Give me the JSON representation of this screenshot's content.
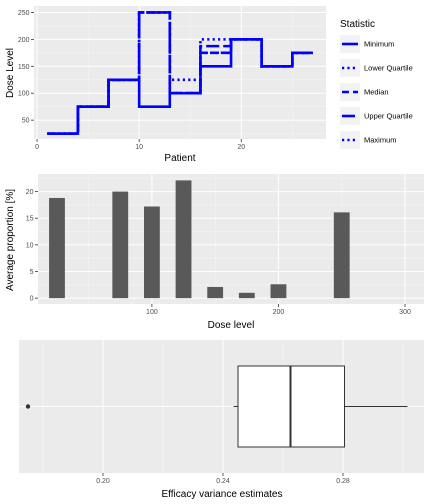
{
  "chart_data": [
    {
      "type": "line",
      "step": true,
      "title": "",
      "xlabel": "Patient",
      "ylabel": "Dose Level",
      "xlim": [
        -0.3,
        28.3
      ],
      "ylim": [
        15,
        262
      ],
      "x_ticks": [
        0,
        10,
        20
      ],
      "x_tick_labels": [
        "0",
        "10",
        "20"
      ],
      "y_ticks": [
        50,
        100,
        150,
        200,
        250
      ],
      "y_tick_labels": [
        "50",
        "100",
        "150",
        "200",
        "250"
      ],
      "grid": true,
      "legend_title": "Statistic",
      "legend_position": "right",
      "series_color": "#0000ff",
      "series": [
        {
          "name": "Minimum",
          "dash": "solid",
          "x": [
            1,
            4,
            7,
            10,
            13,
            16,
            19,
            22,
            25,
            27
          ],
          "y": [
            25,
            75,
            125,
            75,
            100,
            150,
            200,
            150,
            175,
            175
          ]
        },
        {
          "name": "Lower Quartile",
          "dash": "dotted",
          "x": [
            1,
            4,
            7,
            10,
            13,
            16,
            19,
            22,
            25,
            27
          ],
          "y": [
            25,
            75,
            125,
            250,
            100,
            175,
            200,
            150,
            175,
            175
          ]
        },
        {
          "name": "Median",
          "dash": "dashed",
          "x": [
            1,
            4,
            7,
            10,
            13,
            16,
            19,
            22,
            25,
            27
          ],
          "y": [
            25,
            75,
            125,
            250,
            100,
            175,
            200,
            150,
            175,
            175
          ]
        },
        {
          "name": "Upper Quartile",
          "dash": "longdash",
          "x": [
            1,
            4,
            7,
            10,
            13,
            16,
            19,
            22,
            25,
            27
          ],
          "y": [
            25,
            75,
            125,
            250,
            100,
            187.5,
            200,
            150,
            175,
            175
          ]
        },
        {
          "name": "Maximum",
          "dash": "dotted",
          "x": [
            1,
            4,
            7,
            10,
            13,
            16,
            19,
            22,
            25,
            27
          ],
          "y": [
            25,
            75,
            125,
            250,
            125,
            200,
            200,
            150,
            175,
            175
          ]
        }
      ]
    },
    {
      "type": "bar",
      "title": "",
      "xlabel": "Dose level",
      "ylabel": "Average proportion [%]",
      "xlim": [
        10,
        315
      ],
      "ylim": [
        -1.1,
        23.3
      ],
      "x_ticks": [
        100,
        200,
        300
      ],
      "x_tick_labels": [
        "100",
        "200",
        "300"
      ],
      "y_ticks": [
        0,
        5,
        10,
        15,
        20
      ],
      "y_tick_labels": [
        "0",
        "5",
        "10",
        "15",
        "20"
      ],
      "grid": true,
      "bar_width": 12.5,
      "bar_color": "#595959",
      "categories": [
        25,
        75,
        100,
        125,
        150,
        175,
        200,
        250
      ],
      "values": [
        18.8,
        20.0,
        17.2,
        22.1,
        2.1,
        1.0,
        2.6,
        16.1
      ]
    },
    {
      "type": "box",
      "title": "",
      "xlabel": "Efficacy variance estimates",
      "ylabel": "",
      "xlim": [
        0.172,
        0.307
      ],
      "x_ticks": [
        0.2,
        0.24,
        0.28
      ],
      "x_tick_labels": [
        "0.20",
        "0.24",
        "0.28"
      ],
      "grid": true,
      "box": {
        "whisker_low": 0.2435,
        "q1": 0.245,
        "median": 0.2625,
        "q3": 0.2805,
        "whisker_high": 0.3015
      },
      "outliers": [
        0.175
      ]
    }
  ]
}
